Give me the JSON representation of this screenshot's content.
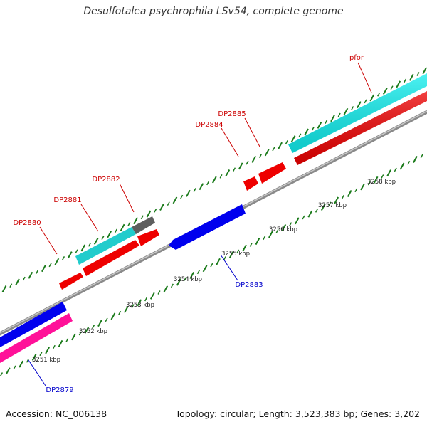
{
  "title": "Desulfotalea psychrophila LSv54, complete genome",
  "footer": {
    "accession": "Accession: NC_006138",
    "stats": "Topology: circular; Length: 3,523,383 bp; Genes: 3,202"
  },
  "colors": {
    "forward_label": "#cc0000",
    "reverse_label": "#0000cc",
    "tick": "#1a7a1a",
    "backbone": "#999999",
    "red_gene": "#ff0000",
    "cyan_gene": "#22dddd",
    "grey_gene": "#666666",
    "blue_gene": "#0000ee",
    "pink_gene": "#ff1199"
  },
  "scale_labels": [
    {
      "text": "3251 kbp"
    },
    {
      "text": "3252 kbp"
    },
    {
      "text": "3253 kbp"
    },
    {
      "text": "3254 kbp"
    },
    {
      "text": "3255 kbp"
    },
    {
      "text": "3256 kbp"
    },
    {
      "text": "3257 kbp"
    },
    {
      "text": "3258 kbp"
    }
  ],
  "gene_labels": [
    {
      "text": "DP2880",
      "strand": "forward"
    },
    {
      "text": "DP2881",
      "strand": "forward"
    },
    {
      "text": "DP2882",
      "strand": "forward"
    },
    {
      "text": "DP2884",
      "strand": "forward"
    },
    {
      "text": "DP2885",
      "strand": "forward"
    },
    {
      "text": "pfor",
      "strand": "forward"
    },
    {
      "text": "DP2883",
      "strand": "reverse"
    },
    {
      "text": "DP2879",
      "strand": "reverse"
    }
  ]
}
